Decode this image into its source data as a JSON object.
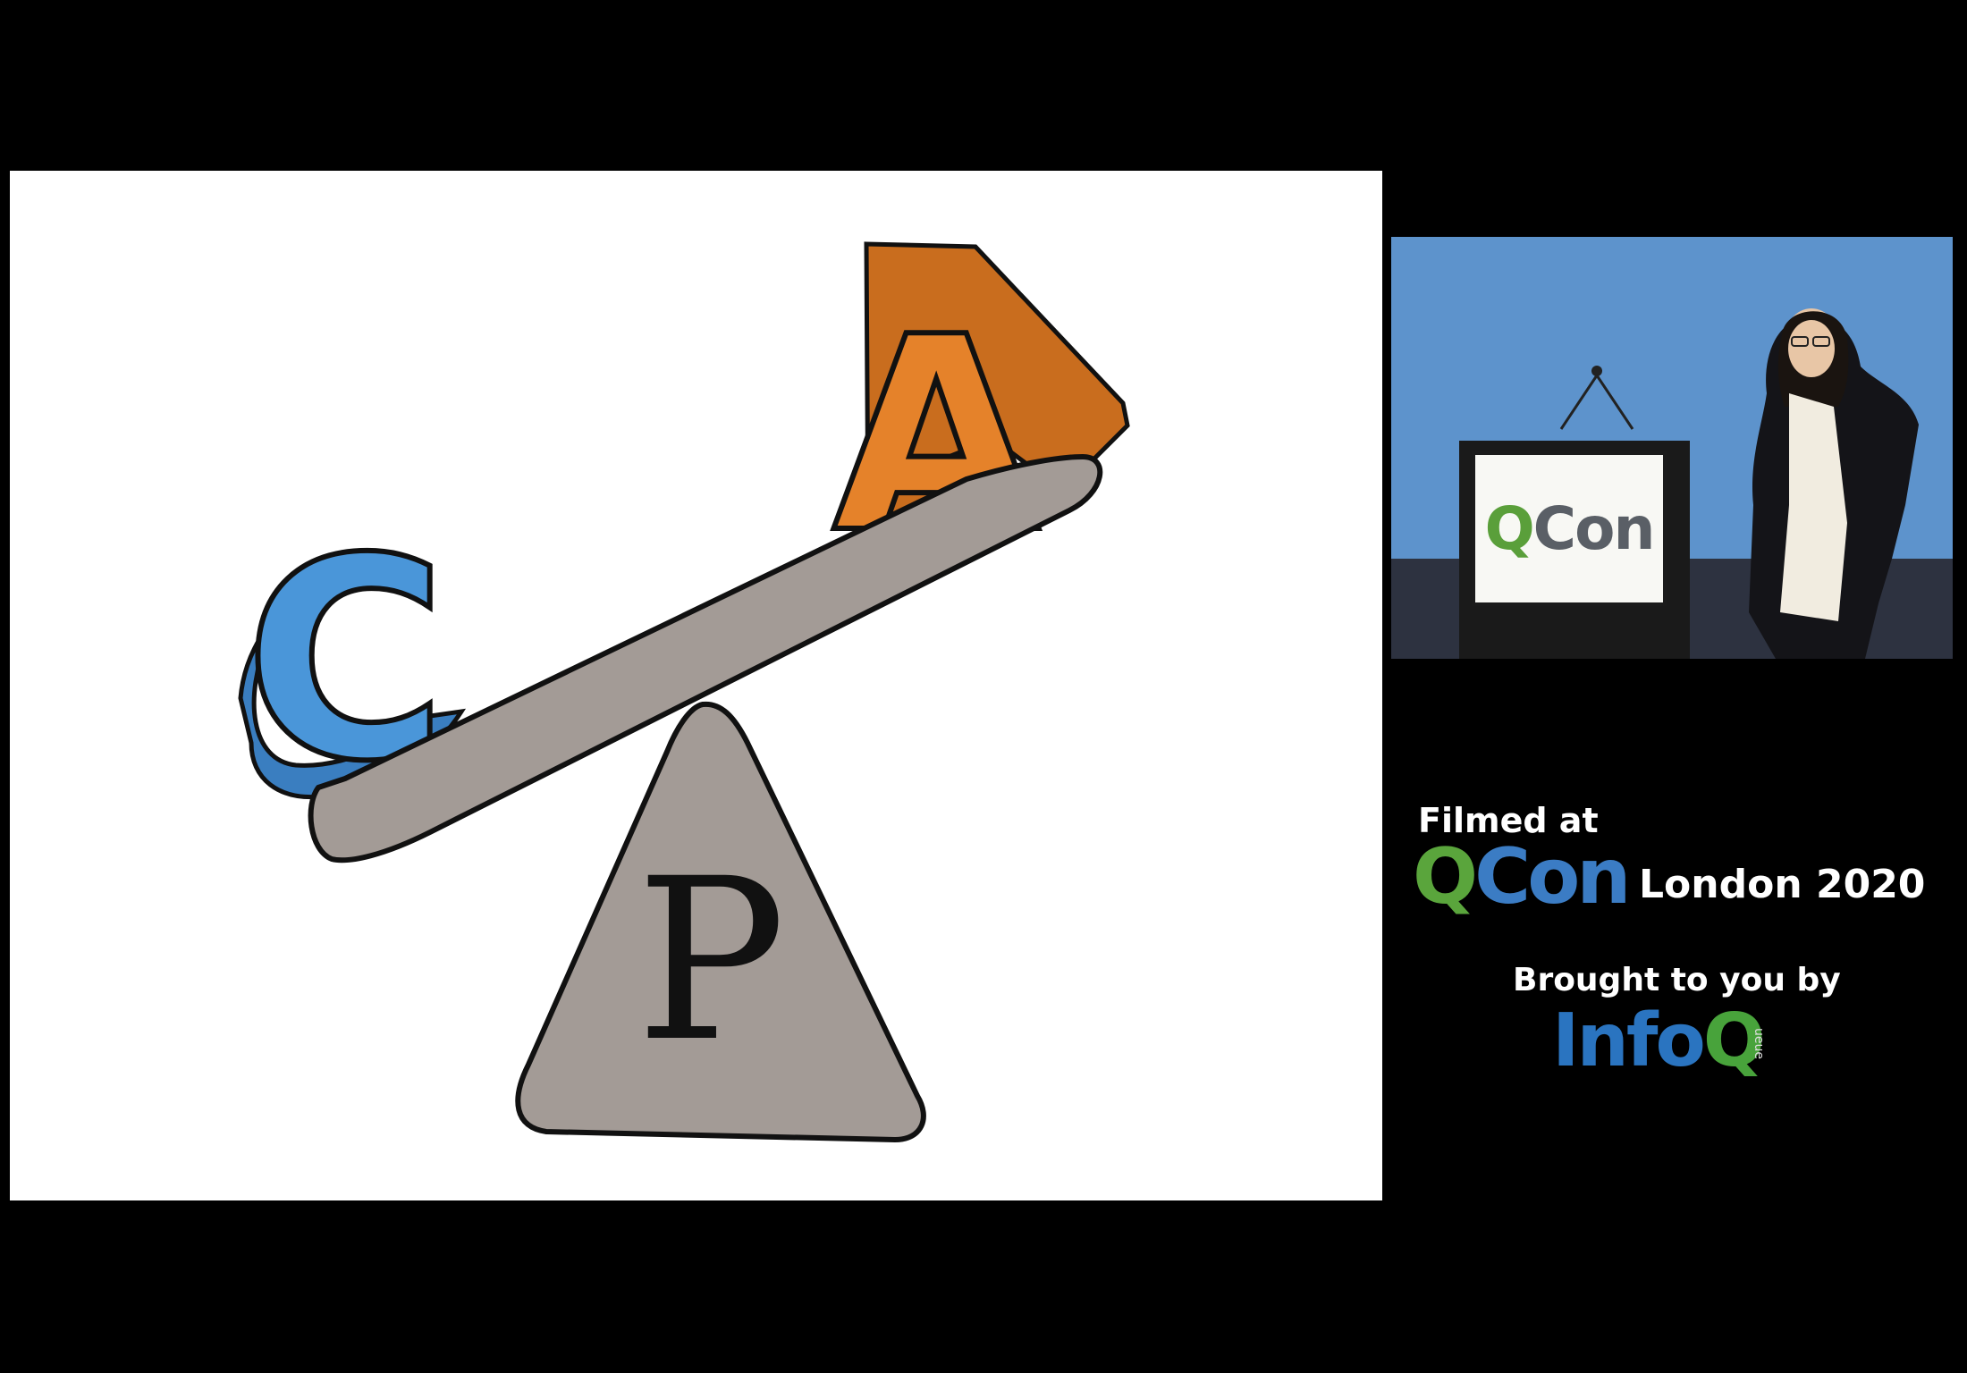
{
  "slide": {
    "letters": {
      "consistency": "C",
      "availability": "A",
      "partition": "P"
    },
    "colors": {
      "c_blue": "#4a96d9",
      "a_orange": "#e5822a",
      "beam_gray": "#a39b96",
      "outline": "#111111"
    }
  },
  "speaker_video": {
    "podium_sign": {
      "q": "Q",
      "con": "Con"
    }
  },
  "credits": {
    "filmed_at": "Filmed at",
    "event_q": "Q",
    "event_con": "Con",
    "event_location_year": "London 2020",
    "brought_to_you_by": "Brought to you by",
    "sponsor_main": "Info",
    "sponsor_q": "Q",
    "sponsor_suffix": "ueue",
    "colors": {
      "qcon_green": "#5aa53c",
      "qcon_blue": "#3b7cc4",
      "infoq_blue": "#2a74c0"
    }
  }
}
